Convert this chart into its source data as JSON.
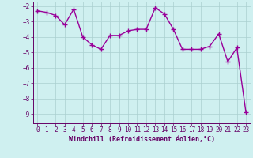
{
  "x": [
    0,
    1,
    2,
    3,
    4,
    5,
    6,
    7,
    8,
    9,
    10,
    11,
    12,
    13,
    14,
    15,
    16,
    17,
    18,
    19,
    20,
    21,
    22,
    23
  ],
  "y": [
    -2.3,
    -2.4,
    -2.6,
    -3.2,
    -2.2,
    -4.0,
    -4.5,
    -4.8,
    -3.9,
    -3.9,
    -3.6,
    -3.5,
    -3.5,
    -2.1,
    -2.5,
    -3.5,
    -4.8,
    -4.8,
    -4.8,
    -4.6,
    -3.8,
    -5.6,
    -4.7,
    -8.9
  ],
  "line_color": "#990099",
  "marker": "+",
  "marker_size": 4,
  "marker_linewidth": 1.0,
  "line_width": 1.0,
  "bg_color": "#cff0f0",
  "grid_color": "#aacfcf",
  "xlabel": "Windchill (Refroidissement éolien,°C)",
  "xlabel_color": "#660066",
  "tick_color": "#660066",
  "ylim": [
    -9.6,
    -1.7
  ],
  "xlim": [
    -0.5,
    23.5
  ],
  "yticks": [
    -2,
    -3,
    -4,
    -5,
    -6,
    -7,
    -8,
    -9
  ],
  "xticks": [
    0,
    1,
    2,
    3,
    4,
    5,
    6,
    7,
    8,
    9,
    10,
    11,
    12,
    13,
    14,
    15,
    16,
    17,
    18,
    19,
    20,
    21,
    22,
    23
  ],
  "tick_fontsize": 5.5,
  "xlabel_fontsize": 6.0,
  "font_family": "monospace"
}
